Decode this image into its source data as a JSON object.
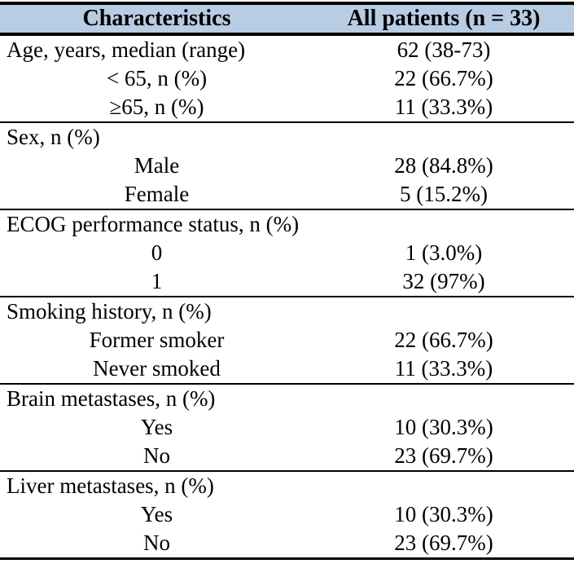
{
  "colors": {
    "header_bg": "#b8cce4",
    "border": "#000000",
    "text": "#000000"
  },
  "table": {
    "columns": [
      "Characteristics",
      "All patients (n = 33)"
    ],
    "sections": [
      {
        "rows": [
          {
            "label": "Age, years, median (range)",
            "value": "62 (38-73)",
            "indent": false
          },
          {
            "label": "< 65, n (%)",
            "value": "22 (66.7%)",
            "indent": true
          },
          {
            "label": "≥65, n (%)",
            "value": "11 (33.3%)",
            "indent": true
          }
        ]
      },
      {
        "rows": [
          {
            "label": "Sex, n (%)",
            "value": "",
            "indent": false
          },
          {
            "label": "Male",
            "value": "28 (84.8%)",
            "indent": true
          },
          {
            "label": "Female",
            "value": "5 (15.2%)",
            "indent": true
          }
        ]
      },
      {
        "rows": [
          {
            "label": "ECOG performance status, n (%)",
            "value": "",
            "indent": false
          },
          {
            "label": "0",
            "value": "1 (3.0%)",
            "indent": true
          },
          {
            "label": "1",
            "value": "32 (97%)",
            "indent": true
          }
        ]
      },
      {
        "rows": [
          {
            "label": "Smoking history, n (%)",
            "value": "",
            "indent": false
          },
          {
            "label": "Former smoker",
            "value": "22 (66.7%)",
            "indent": true
          },
          {
            "label": "Never smoked",
            "value": "11 (33.3%)",
            "indent": true
          }
        ]
      },
      {
        "rows": [
          {
            "label": "Brain metastases, n (%)",
            "value": "",
            "indent": false
          },
          {
            "label": "Yes",
            "value": "10 (30.3%)",
            "indent": true
          },
          {
            "label": "No",
            "value": "23 (69.7%)",
            "indent": true
          }
        ]
      },
      {
        "rows": [
          {
            "label": "Liver metastases, n (%)",
            "value": "",
            "indent": false
          },
          {
            "label": "Yes",
            "value": "10 (30.3%)",
            "indent": true
          },
          {
            "label": "No",
            "value": "23 (69.7%)",
            "indent": true
          }
        ]
      }
    ]
  }
}
